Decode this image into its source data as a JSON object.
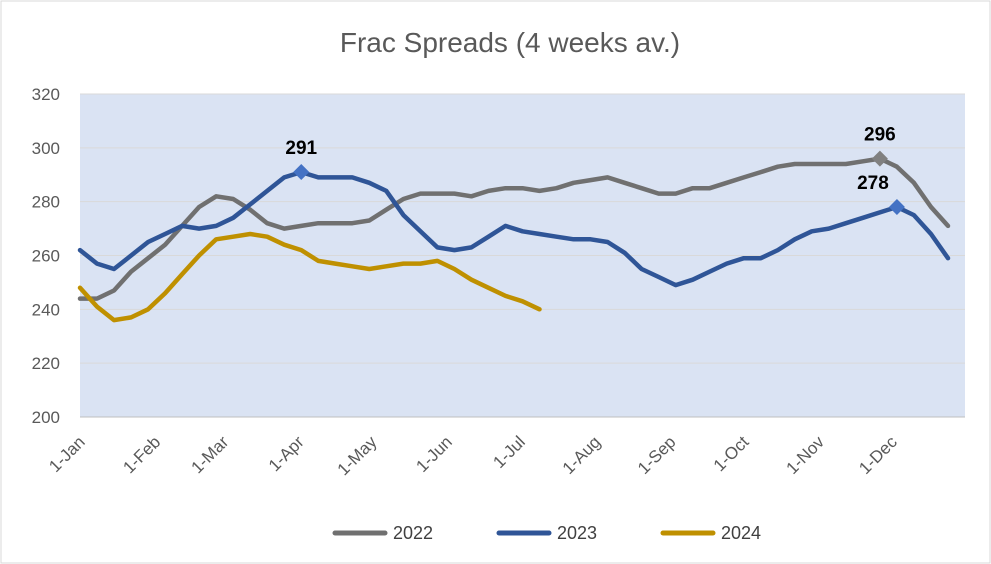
{
  "chart_data": {
    "type": "line",
    "title": "Frac Spreads (4 weeks av.)",
    "xlabel": "",
    "ylabel": "",
    "ylim": [
      200,
      320
    ],
    "yticks": [
      200,
      220,
      240,
      260,
      280,
      300,
      320
    ],
    "x_domain": [
      0,
      52
    ],
    "xticks": [
      {
        "label": "1-Jan",
        "week": 0
      },
      {
        "label": "1-Feb",
        "week": 4.43
      },
      {
        "label": "1-Mar",
        "week": 8.43
      },
      {
        "label": "1-Apr",
        "week": 12.86
      },
      {
        "label": "1-May",
        "week": 17.14
      },
      {
        "label": "1-Jun",
        "week": 21.57
      },
      {
        "label": "1-Jul",
        "week": 25.86
      },
      {
        "label": "1-Aug",
        "week": 30.29
      },
      {
        "label": "1-Sep",
        "week": 34.71
      },
      {
        "label": "1-Oct",
        "week": 39.0
      },
      {
        "label": "1-Nov",
        "week": 43.43
      },
      {
        "label": "1-Dec",
        "week": 47.71
      }
    ],
    "series": [
      {
        "name": "2022",
        "color": "#707070",
        "values": [
          244,
          244,
          247,
          254,
          259,
          264,
          271,
          278,
          282,
          281,
          277,
          272,
          270,
          271,
          272,
          272,
          272,
          273,
          277,
          281,
          283,
          283,
          283,
          282,
          284,
          285,
          285,
          284,
          285,
          287,
          288,
          289,
          287,
          285,
          283,
          283,
          285,
          285,
          287,
          289,
          291,
          293,
          294,
          294,
          294,
          294,
          295,
          296,
          293,
          287,
          278,
          271
        ]
      },
      {
        "name": "2023",
        "color": "#2F5597",
        "values": [
          262,
          257,
          255,
          260,
          265,
          268,
          271,
          270,
          271,
          274,
          279,
          284,
          289,
          291,
          289,
          289,
          289,
          287,
          284,
          275,
          269,
          263,
          262,
          263,
          267,
          271,
          269,
          268,
          267,
          266,
          266,
          265,
          261,
          255,
          252,
          249,
          251,
          254,
          257,
          259,
          259,
          262,
          266,
          269,
          270,
          272,
          274,
          276,
          278,
          275,
          268,
          259
        ]
      },
      {
        "name": "2024",
        "color": "#BF9000",
        "values": [
          248,
          241,
          236,
          237,
          240,
          246,
          253,
          260,
          266,
          267,
          268,
          267,
          264,
          262,
          258,
          257,
          256,
          255,
          256,
          257,
          257,
          258,
          255,
          251,
          248,
          245,
          243,
          240
        ]
      }
    ],
    "annotations": [
      {
        "series": "2023",
        "week": 13,
        "value": 291,
        "label": "291"
      },
      {
        "series": "2022",
        "week": 47,
        "value": 296,
        "label": "296"
      },
      {
        "series": "2023",
        "week": 48,
        "value": 278,
        "label": "278"
      }
    ],
    "legend": {
      "position": "bottom",
      "entries": [
        "2022",
        "2023",
        "2024"
      ]
    },
    "plot_background": "#DAE3F3",
    "grid": true
  }
}
